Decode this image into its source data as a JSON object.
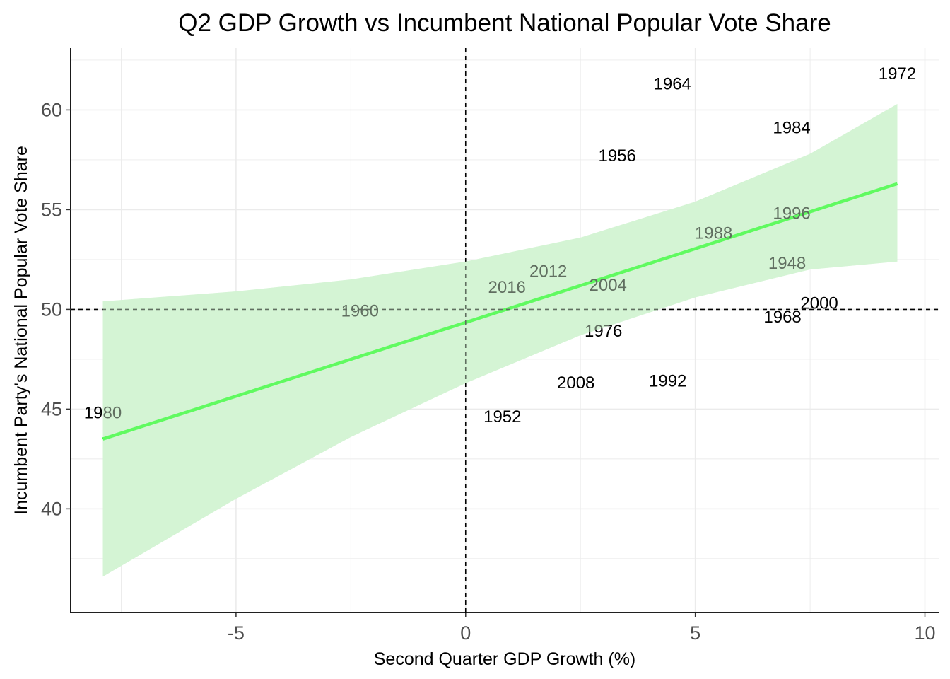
{
  "chart_data": {
    "type": "scatter",
    "title": "Q2 GDP Growth vs Incumbent National Popular Vote Share",
    "xlabel": "Second Quarter GDP Growth (%)",
    "ylabel": "Incumbent Party's National Popular Vote Share",
    "xlim": [
      -8.6,
      10.3
    ],
    "ylim": [
      34.8,
      63.1
    ],
    "x_ticks": [
      -5,
      0,
      5,
      10
    ],
    "x_tick_labels": [
      "-5",
      "0",
      "5",
      "10"
    ],
    "y_ticks": [
      40,
      45,
      50,
      55,
      60
    ],
    "y_tick_labels": [
      "40",
      "45",
      "50",
      "55",
      "60"
    ],
    "grid": true,
    "reference_lines": {
      "x": 0,
      "y": 50
    },
    "points": [
      {
        "label": "1948",
        "x": 7.0,
        "y": 52.3
      },
      {
        "label": "1952",
        "x": 0.8,
        "y": 44.6
      },
      {
        "label": "1956",
        "x": 3.3,
        "y": 57.7
      },
      {
        "label": "1960",
        "x": -2.3,
        "y": 49.9
      },
      {
        "label": "1964",
        "x": 4.5,
        "y": 61.3
      },
      {
        "label": "1968",
        "x": 6.9,
        "y": 49.6
      },
      {
        "label": "1972",
        "x": 9.4,
        "y": 61.8
      },
      {
        "label": "1976",
        "x": 3.0,
        "y": 48.9
      },
      {
        "label": "1980",
        "x": -7.9,
        "y": 44.8
      },
      {
        "label": "1984",
        "x": 7.1,
        "y": 59.1
      },
      {
        "label": "1988",
        "x": 5.4,
        "y": 53.8
      },
      {
        "label": "1992",
        "x": 4.4,
        "y": 46.4
      },
      {
        "label": "1996",
        "x": 7.1,
        "y": 54.8
      },
      {
        "label": "2000",
        "x": 7.7,
        "y": 50.3
      },
      {
        "label": "2004",
        "x": 3.1,
        "y": 51.2
      },
      {
        "label": "2008",
        "x": 2.4,
        "y": 46.3
      },
      {
        "label": "2012",
        "x": 1.8,
        "y": 51.9
      },
      {
        "label": "2016",
        "x": 0.9,
        "y": 51.1
      }
    ],
    "fit_line": {
      "x": [
        -7.9,
        9.4
      ],
      "y": [
        43.5,
        56.3
      ],
      "color": "#00ff00"
    },
    "confidence_band": {
      "color": "#d4f5d4",
      "x": [
        -7.9,
        -5,
        -2.5,
        0,
        2.5,
        5,
        7.5,
        9.4
      ],
      "upper": [
        50.4,
        50.9,
        51.5,
        52.4,
        53.6,
        55.4,
        57.8,
        60.3
      ],
      "lower": [
        36.6,
        40.5,
        43.6,
        46.3,
        48.7,
        50.6,
        52.0,
        52.4
      ]
    }
  }
}
